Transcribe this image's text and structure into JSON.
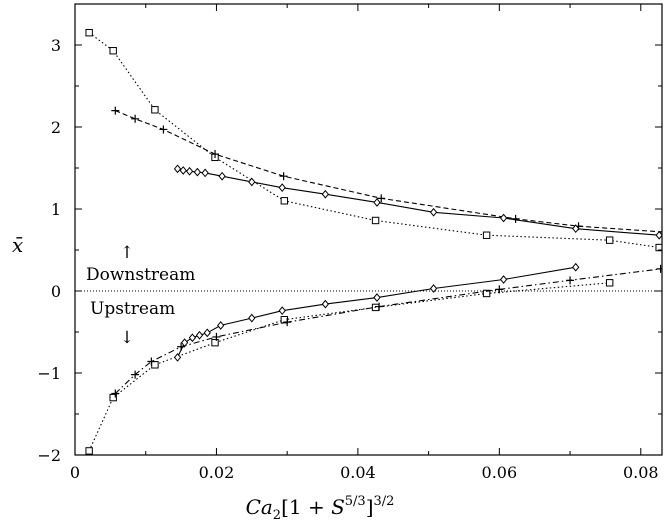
{
  "chart_data": {
    "type": "line",
    "xlabel": "Ca2[1 + S5/3]3/2",
    "xlabel_parts": {
      "base": "Ca",
      "sub": "2",
      "mid1": "[1 + ",
      "S": "S",
      "sup1": "5/3",
      "mid2": "]",
      "sup2": "3/2"
    },
    "ylabel": "x̄",
    "xlim": [
      0,
      0.083
    ],
    "ylim": [
      -2,
      3.5
    ],
    "xticks": [
      0,
      0.02,
      0.04,
      0.06,
      0.08
    ],
    "xtick_labels": [
      "0",
      "0.02",
      "0.04",
      "0.06",
      "0.08"
    ],
    "yticks": [
      -2,
      -1,
      0,
      1,
      2,
      3
    ],
    "ytick_labels": [
      "−2",
      "−1",
      "0",
      "1",
      "2",
      "3"
    ],
    "grid": false,
    "reference_line": {
      "y": 0,
      "style": "dotted"
    },
    "annotations": {
      "downstream": "Downstream",
      "upstream": "Upstream",
      "up_arrow": "↑",
      "down_arrow": "↓"
    },
    "series": [
      {
        "marker": "square",
        "line_style": "dotted",
        "branch": "downstream",
        "x": [
          0.002,
          0.0054,
          0.0113,
          0.0198,
          0.0296,
          0.0425,
          0.0582,
          0.0756,
          0.0826
        ],
        "y": [
          3.15,
          2.93,
          2.21,
          1.63,
          1.1,
          0.86,
          0.68,
          0.62,
          0.53
        ]
      },
      {
        "marker": "square",
        "line_style": "dotted",
        "branch": "upstream",
        "x": [
          0.002,
          0.0054,
          0.0113,
          0.0198,
          0.0296,
          0.0425,
          0.0582,
          0.0756
        ],
        "y": [
          -1.95,
          -1.3,
          -0.9,
          -0.63,
          -0.35,
          -0.2,
          -0.03,
          0.1
        ]
      },
      {
        "marker": "plus",
        "line_style": "dashed",
        "branch": "downstream",
        "x": [
          0.0057,
          0.0085,
          0.0125,
          0.0198,
          0.0295,
          0.0433,
          0.0623,
          0.0712,
          0.0832
        ],
        "y": [
          2.2,
          2.1,
          1.97,
          1.67,
          1.4,
          1.13,
          0.88,
          0.79,
          0.72
        ]
      },
      {
        "marker": "plus",
        "line_style": "dash-dot",
        "branch": "upstream",
        "x": [
          0.0057,
          0.0085,
          0.0108,
          0.015,
          0.02,
          0.03,
          0.043,
          0.06,
          0.07,
          0.0828
        ],
        "y": [
          -1.25,
          -1.02,
          -0.86,
          -0.68,
          -0.56,
          -0.38,
          -0.19,
          0.02,
          0.13,
          0.27
        ]
      },
      {
        "marker": "diamond",
        "line_style": "solid",
        "branch": "downstream",
        "x": [
          0.0145,
          0.0153,
          0.0162,
          0.0173,
          0.0184,
          0.0208,
          0.025,
          0.0293,
          0.0354,
          0.0427,
          0.0507,
          0.0606,
          0.0708,
          0.0826
        ],
        "y": [
          1.49,
          1.47,
          1.46,
          1.45,
          1.44,
          1.4,
          1.33,
          1.26,
          1.18,
          1.08,
          0.96,
          0.89,
          0.76,
          0.68
        ]
      },
      {
        "marker": "diamond",
        "line_style": "solid",
        "branch": "upstream",
        "x": [
          0.0145,
          0.0155,
          0.0166,
          0.0176,
          0.0187,
          0.0206,
          0.025,
          0.0293,
          0.0354,
          0.0427,
          0.0507,
          0.0606,
          0.0708
        ],
        "y": [
          -0.81,
          -0.63,
          -0.57,
          -0.54,
          -0.51,
          -0.42,
          -0.33,
          -0.24,
          -0.16,
          -0.08,
          0.03,
          0.14,
          0.29
        ]
      }
    ]
  }
}
